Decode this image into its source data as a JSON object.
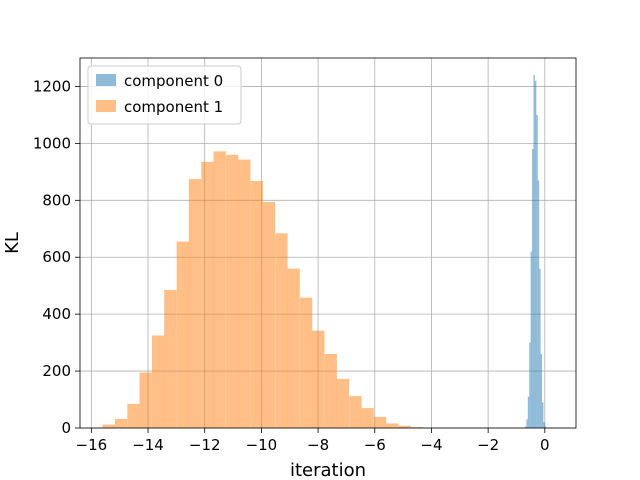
{
  "chart_data": {
    "type": "histogram",
    "title": "",
    "xlabel": "iteration",
    "ylabel": "KL",
    "xlim": [
      -16.4,
      1.1
    ],
    "ylim": [
      0,
      1300
    ],
    "xticks": [
      -16,
      -14,
      -12,
      -10,
      -8,
      -6,
      -4,
      -2,
      0
    ],
    "xtick_labels": [
      "−16",
      "−14",
      "−12",
      "−10",
      "−8",
      "−6",
      "−4",
      "−2",
      "0"
    ],
    "yticks": [
      0,
      200,
      400,
      600,
      800,
      1000,
      1200
    ],
    "ytick_labels": [
      "0",
      "200",
      "400",
      "600",
      "800",
      "1000",
      "1200"
    ],
    "grid": true,
    "legend_position": "upper-left",
    "series": [
      {
        "name": "component 0",
        "color": "#1f77b4",
        "alpha": 0.5,
        "bins": [
          [
            -0.7,
            5
          ],
          [
            -0.65,
            30
          ],
          [
            -0.6,
            110
          ],
          [
            -0.55,
            300
          ],
          [
            -0.5,
            620
          ],
          [
            -0.45,
            980
          ],
          [
            -0.4,
            1240
          ],
          [
            -0.35,
            1220
          ],
          [
            -0.3,
            1100
          ],
          [
            -0.25,
            870
          ],
          [
            -0.2,
            560
          ],
          [
            -0.15,
            260
          ],
          [
            -0.1,
            90
          ],
          [
            -0.05,
            20
          ],
          [
            0.0,
            5
          ]
        ],
        "bin_width": 0.05
      },
      {
        "name": "component 1",
        "color": "#ff7f0e",
        "alpha": 0.5,
        "bins": [
          [
            -15.6,
            12
          ],
          [
            -15.17,
            32
          ],
          [
            -14.73,
            85
          ],
          [
            -14.3,
            195
          ],
          [
            -13.86,
            325
          ],
          [
            -13.43,
            485
          ],
          [
            -12.99,
            655
          ],
          [
            -12.56,
            875
          ],
          [
            -12.12,
            935
          ],
          [
            -11.69,
            972
          ],
          [
            -11.25,
            960
          ],
          [
            -10.82,
            943
          ],
          [
            -10.38,
            868
          ],
          [
            -9.95,
            794
          ],
          [
            -9.51,
            684
          ],
          [
            -9.08,
            560
          ],
          [
            -8.64,
            458
          ],
          [
            -8.21,
            342
          ],
          [
            -7.77,
            260
          ],
          [
            -7.34,
            172
          ],
          [
            -6.9,
            112
          ],
          [
            -6.47,
            70
          ],
          [
            -6.03,
            39
          ],
          [
            -5.6,
            16
          ],
          [
            -5.16,
            8
          ],
          [
            -4.73,
            3
          ],
          [
            -4.29,
            1
          ],
          [
            -3.86,
            1
          ]
        ],
        "bin_width": 0.435
      }
    ]
  }
}
